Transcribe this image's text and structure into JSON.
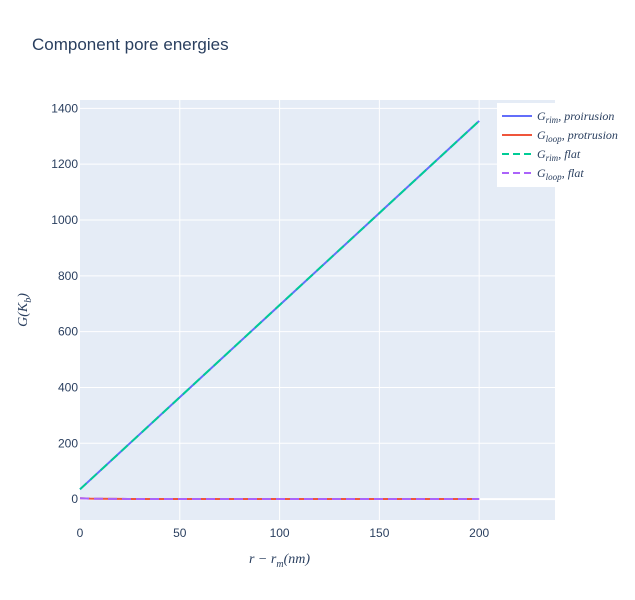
{
  "chart_data": {
    "type": "line",
    "title": "Component pore energies",
    "xlabel": "r − r_m(nm)",
    "ylabel": "G(K_b)",
    "xlim": [
      0,
      238
    ],
    "ylim": [
      -75,
      1430
    ],
    "xticks": [
      0,
      50,
      100,
      150,
      200
    ],
    "yticks": [
      0,
      200,
      400,
      600,
      800,
      1000,
      1200,
      1400
    ],
    "grid": true,
    "legend_position": "right",
    "background": "#e5ecf6",
    "series": [
      {
        "name": "G_rim, proirusion",
        "name_main": "G",
        "name_sub": "rim",
        "name_tail": ", proirusion",
        "color": "#636efa",
        "dash": "solid",
        "x": [
          0,
          200
        ],
        "y": [
          35,
          1355
        ]
      },
      {
        "name": "G_loop, protrusion",
        "name_main": "G",
        "name_sub": "loop",
        "name_tail": ", protrusion",
        "color": "#ef553b",
        "dash": "solid",
        "x": [
          0,
          5,
          10,
          20,
          50,
          100,
          150,
          200
        ],
        "y": [
          3,
          1.5,
          1,
          0.5,
          0.2,
          0.1,
          0.05,
          0.03
        ]
      },
      {
        "name": "G_rim, flat",
        "name_main": "G",
        "name_sub": "rim",
        "name_tail": ", flat",
        "color": "#00cc96",
        "dash": "dash",
        "x": [
          0,
          200
        ],
        "y": [
          35,
          1355
        ]
      },
      {
        "name": "G_loop, flat",
        "name_main": "G",
        "name_sub": "loop",
        "name_tail": ", flat",
        "color": "#ab63fa",
        "dash": "dash",
        "x": [
          0,
          5,
          10,
          20,
          50,
          100,
          150,
          200
        ],
        "y": [
          3,
          1.5,
          1,
          0.5,
          0.2,
          0.1,
          0.05,
          0.03
        ]
      }
    ]
  }
}
